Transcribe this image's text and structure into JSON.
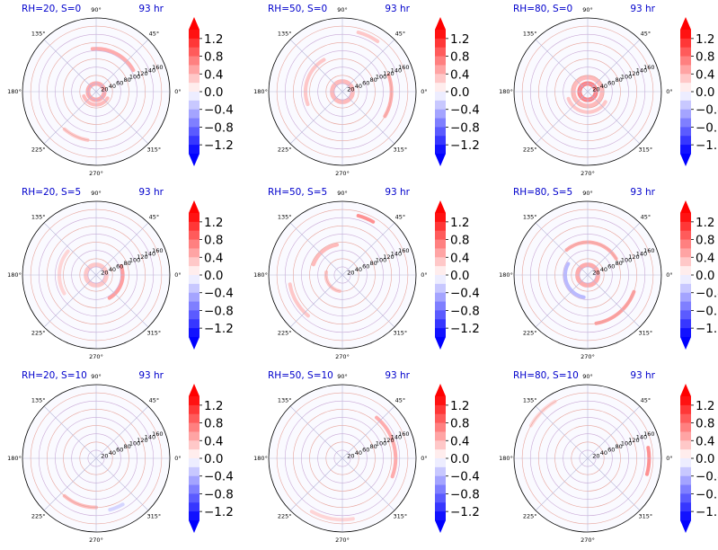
{
  "figure": {
    "colorbar": {
      "ticks": [
        "1.2",
        "0.8",
        "0.4",
        "0.0",
        "−0.4",
        "−0.8",
        "−1.2"
      ],
      "tick_values": [
        1.2,
        0.8,
        0.4,
        0.0,
        -0.4,
        -0.8,
        -1.2
      ],
      "range": [
        -1.4,
        1.4
      ],
      "colormap": "bwr",
      "colors": {
        "low": "#0000ff",
        "mid": "#ffffff",
        "high": "#ff0000"
      },
      "extend": "both"
    },
    "polar_axes": {
      "angle_labels": [
        "0°",
        "45°",
        "90°",
        "135°",
        "180°",
        "225°",
        "270°",
        "315°"
      ],
      "angle_values": [
        0,
        45,
        90,
        135,
        180,
        225,
        270,
        315
      ],
      "radial_labels": [
        "20",
        "40",
        "60",
        "80",
        "100",
        "120",
        "140",
        "160"
      ],
      "radial_values": [
        20,
        40,
        60,
        80,
        100,
        120,
        140,
        160
      ],
      "r_max": 180
    },
    "panel_title_color": "#0000cc"
  },
  "chart_data": [
    {
      "type": "heatmap",
      "projection": "polar",
      "title": "RH=20, S=0",
      "time_label": "93 hr",
      "features": [
        {
          "kind": "ring",
          "r": 20,
          "theta_range": [
            0,
            360
          ],
          "value": 0.6
        },
        {
          "kind": "arc",
          "r": 32,
          "theta_range": [
            200,
            330
          ],
          "value": 0.5
        },
        {
          "kind": "arc",
          "r": 105,
          "theta_range": [
            30,
            95
          ],
          "value": 0.6
        },
        {
          "kind": "arc",
          "r": 120,
          "theta_range": [
            230,
            260
          ],
          "value": 0.4
        }
      ]
    },
    {
      "type": "heatmap",
      "projection": "polar",
      "title": "RH=50, S=0",
      "time_label": "93 hr",
      "features": [
        {
          "kind": "ring",
          "r": 25,
          "theta_range": [
            0,
            360
          ],
          "value": 0.5
        },
        {
          "kind": "arc",
          "r": 90,
          "theta_range": [
            120,
            200
          ],
          "value": 0.4
        },
        {
          "kind": "arc",
          "r": 120,
          "theta_range": [
            330,
            380
          ],
          "value": 0.6
        },
        {
          "kind": "arc",
          "r": 150,
          "theta_range": [
            55,
            75
          ],
          "value": 0.4
        }
      ]
    },
    {
      "type": "heatmap",
      "projection": "polar",
      "title": "RH=80, S=0",
      "time_label": "93 hr",
      "features": [
        {
          "kind": "ring",
          "r": 20,
          "theta_range": [
            0,
            360
          ],
          "value": 0.9
        },
        {
          "kind": "ring",
          "r": 35,
          "theta_range": [
            0,
            360
          ],
          "value": 0.5
        },
        {
          "kind": "arc",
          "r": 50,
          "theta_range": [
            200,
            330
          ],
          "value": 0.4
        }
      ]
    },
    {
      "type": "heatmap",
      "projection": "polar",
      "title": "RH=20, S=5",
      "time_label": "93 hr",
      "features": [
        {
          "kind": "ring",
          "r": 25,
          "theta_range": [
            0,
            360
          ],
          "value": 0.4
        },
        {
          "kind": "arc",
          "r": 65,
          "theta_range": [
            -60,
            20
          ],
          "value": 0.7
        },
        {
          "kind": "arc",
          "r": 90,
          "theta_range": [
            140,
            210
          ],
          "value": 0.3
        }
      ]
    },
    {
      "type": "heatmap",
      "projection": "polar",
      "title": "RH=50, S=5",
      "time_label": "93 hr",
      "features": [
        {
          "kind": "arc",
          "r": 40,
          "theta_range": [
            170,
            260
          ],
          "value": 0.4
        },
        {
          "kind": "arc",
          "r": 75,
          "theta_range": [
            100,
            160
          ],
          "value": 0.5
        },
        {
          "kind": "arc",
          "r": 150,
          "theta_range": [
            60,
            75
          ],
          "value": 0.8
        },
        {
          "kind": "arc",
          "r": 130,
          "theta_range": [
            190,
            230
          ],
          "value": 0.4
        }
      ]
    },
    {
      "type": "heatmap",
      "projection": "polar",
      "title": "RH=80, S=5",
      "time_label": "93 hr",
      "features": [
        {
          "kind": "ring",
          "r": 25,
          "theta_range": [
            0,
            360
          ],
          "value": 0.6
        },
        {
          "kind": "arc",
          "r": 55,
          "theta_range": [
            150,
            260
          ],
          "value": -0.5
        },
        {
          "kind": "arc",
          "r": 80,
          "theta_range": [
            30,
            130
          ],
          "value": 0.6
        },
        {
          "kind": "arc",
          "r": 120,
          "theta_range": [
            280,
            340
          ],
          "value": 0.7
        }
      ]
    },
    {
      "type": "heatmap",
      "projection": "polar",
      "title": "RH=20, S=10",
      "time_label": "93 hr",
      "features": [
        {
          "kind": "arc",
          "r": 120,
          "theta_range": [
            230,
            270
          ],
          "value": 0.5
        },
        {
          "kind": "arc",
          "r": 130,
          "theta_range": [
            285,
            300
          ],
          "value": -0.3
        }
      ]
    },
    {
      "type": "heatmap",
      "projection": "polar",
      "title": "RH=50, S=10",
      "time_label": "93 hr",
      "features": [
        {
          "kind": "arc",
          "r": 130,
          "theta_range": [
            -20,
            50
          ],
          "value": 0.6
        },
        {
          "kind": "arc",
          "r": 150,
          "theta_range": [
            240,
            280
          ],
          "value": 0.3
        }
      ]
    },
    {
      "type": "heatmap",
      "projection": "polar",
      "title": "RH=80, S=10",
      "time_label": "93 hr",
      "features": [
        {
          "kind": "arc",
          "r": 150,
          "theta_range": [
            -15,
            10
          ],
          "value": 0.8
        },
        {
          "kind": "arc",
          "r": 160,
          "theta_range": [
            120,
            150
          ],
          "value": 0.3
        }
      ]
    }
  ]
}
